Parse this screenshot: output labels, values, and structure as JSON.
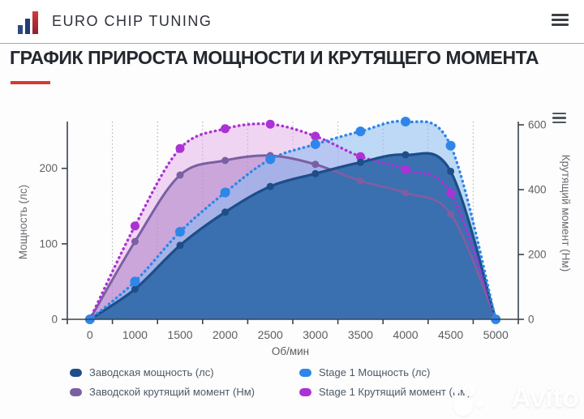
{
  "header": {
    "brand": "EURO CHIP TUNING",
    "menu_icon": "hamburger-icon"
  },
  "title": {
    "text": "ГРАФИК ПРИРОСТА МОЩНОСТИ И КРУТЯЩЕГО МОМЕНТА",
    "accent_color": "#d63a2f"
  },
  "chart_data": {
    "type": "line",
    "x_categories": [
      0,
      1000,
      1500,
      2000,
      2500,
      3000,
      3500,
      4000,
      4500,
      5000
    ],
    "xlabel": "Об/мин",
    "y_left": {
      "label": "Мощность (лс)",
      "ticks": [
        0,
        100,
        200
      ],
      "range": [
        0,
        262
      ]
    },
    "y_right": {
      "label": "Крутящий момент (Нм)",
      "ticks": [
        0,
        200,
        400,
        600
      ],
      "range": [
        0,
        610
      ]
    },
    "grid": "vertical-dotted-between-categories",
    "legend_position": "bottom",
    "series": [
      {
        "name": "Заводская мощность (лс)",
        "axis": "left",
        "style": "solid",
        "color": "#1d4e89",
        "fill": "rgba(52,107,173,0.95)",
        "marker_r": 4.5,
        "width": 3.2,
        "values": [
          0,
          40,
          98,
          142,
          176,
          193,
          208,
          218,
          196,
          0
        ]
      },
      {
        "name": "Stage 1 Мощность (лс)",
        "axis": "left",
        "style": "dotted",
        "color": "#2e86e8",
        "fill": "rgba(137,188,240,0.55)",
        "marker_r": 6,
        "width": 3.4,
        "values": [
          0,
          50,
          116,
          168,
          212,
          232,
          249,
          262,
          230,
          0
        ]
      },
      {
        "name": "Заводской крутящий момент (Нм)",
        "axis": "right",
        "style": "solid",
        "color": "#7b5fa3",
        "fill": "rgba(164,119,196,0.50)",
        "marker_r": 4.5,
        "width": 3,
        "values": [
          0,
          240,
          445,
          490,
          505,
          478,
          427,
          390,
          325,
          0
        ]
      },
      {
        "name": "Stage 1 Крутящий момент (Нм)",
        "axis": "right",
        "style": "dotted",
        "color": "#ab32d4",
        "fill": "rgba(224,164,231,0.45)",
        "marker_r": 5.5,
        "width": 3.4,
        "values": [
          0,
          288,
          527,
          588,
          602,
          565,
          502,
          462,
          390,
          0
        ]
      }
    ],
    "chart_menu_icon": "hamburger-icon"
  },
  "watermark": {
    "text": "Avito"
  }
}
